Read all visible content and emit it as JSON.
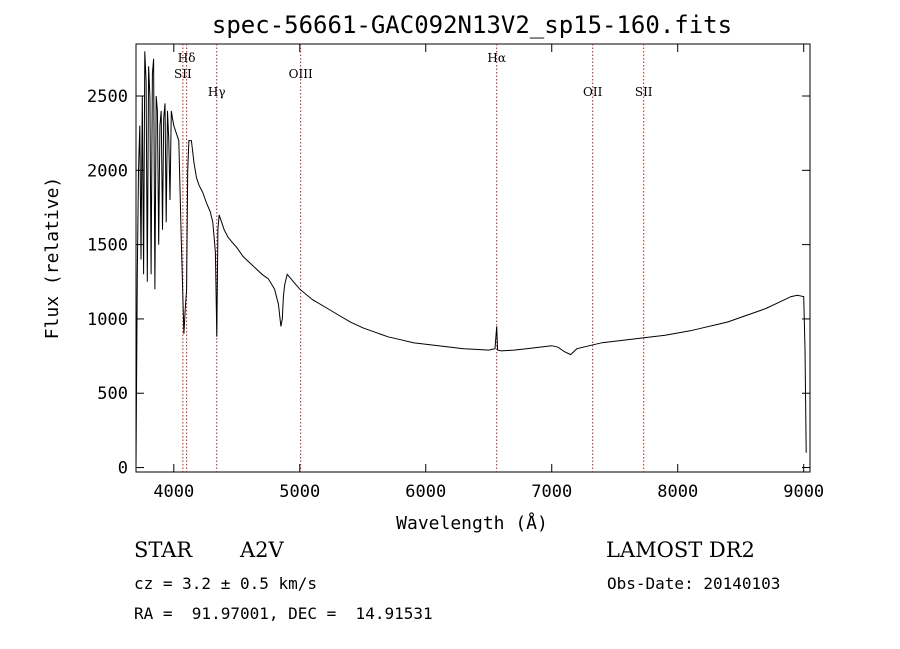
{
  "chart_data": {
    "type": "line",
    "title": "spec-56661-GAC092N13V2_sp15-160.fits",
    "xlabel": "Wavelength (Å)",
    "ylabel": "Flux (relative)",
    "xlim": [
      3700,
      9050
    ],
    "ylim": [
      -30,
      2850
    ],
    "xticks": [
      4000,
      5000,
      6000,
      7000,
      8000,
      9000
    ],
    "yticks": [
      0,
      500,
      1000,
      1500,
      2000,
      2500
    ],
    "grid": false,
    "line_color": "#000000",
    "marker_color": "#b22222",
    "spectral_lines": [
      {
        "label": "Hδ",
        "x": 4102
      },
      {
        "label": "SII",
        "x": 4072
      },
      {
        "label": "Hγ",
        "x": 4341
      },
      {
        "label": "OIII",
        "x": 5007
      },
      {
        "label": "Hα",
        "x": 6563
      },
      {
        "label": "OII",
        "x": 7325
      },
      {
        "label": "SII",
        "x": 7730
      }
    ],
    "series": [
      {
        "x": [
          3700,
          3710,
          3720,
          3730,
          3740,
          3750,
          3760,
          3770,
          3780,
          3790,
          3800,
          3810,
          3820,
          3830,
          3840,
          3850,
          3860,
          3870,
          3880,
          3890,
          3900,
          3910,
          3920,
          3930,
          3940,
          3950,
          3960,
          3970,
          3980,
          3990,
          4000,
          4020,
          4040,
          4060,
          4080,
          4090,
          4102,
          4110,
          4120,
          4140,
          4160,
          4180,
          4200,
          4230,
          4260,
          4290,
          4310,
          4330,
          4341,
          4350,
          4360,
          4380,
          4400,
          4430,
          4460,
          4500,
          4550,
          4600,
          4650,
          4700,
          4750,
          4800,
          4830,
          4850,
          4861,
          4870,
          4880,
          4900,
          4950,
          5000,
          5100,
          5200,
          5300,
          5400,
          5500,
          5600,
          5700,
          5800,
          5900,
          6000,
          6100,
          6200,
          6300,
          6400,
          6500,
          6550,
          6563,
          6570,
          6600,
          6700,
          6800,
          6900,
          7000,
          7050,
          7100,
          7150,
          7200,
          7300,
          7400,
          7500,
          7600,
          7700,
          7800,
          7900,
          8000,
          8100,
          8200,
          8300,
          8400,
          8500,
          8600,
          8700,
          8800,
          8850,
          8900,
          8950,
          9000,
          9010,
          9020
        ],
        "y": [
          0,
          1300,
          2000,
          2300,
          1400,
          2500,
          1300,
          2800,
          2600,
          1250,
          2700,
          2500,
          1300,
          2650,
          2750,
          1200,
          2500,
          2400,
          1500,
          2300,
          2400,
          1600,
          2350,
          2450,
          1650,
          2400,
          2200,
          1800,
          2400,
          2350,
          2300,
          2250,
          2200,
          1500,
          900,
          1050,
          1200,
          2000,
          2200,
          2200,
          2050,
          1950,
          1900,
          1850,
          1780,
          1720,
          1650,
          1450,
          880,
          1600,
          1700,
          1650,
          1600,
          1550,
          1520,
          1480,
          1420,
          1380,
          1340,
          1300,
          1270,
          1200,
          1100,
          950,
          1000,
          1150,
          1230,
          1300,
          1250,
          1200,
          1130,
          1080,
          1030,
          980,
          940,
          910,
          880,
          860,
          840,
          830,
          820,
          810,
          800,
          795,
          790,
          800,
          950,
          790,
          785,
          790,
          800,
          810,
          820,
          810,
          780,
          760,
          800,
          820,
          840,
          850,
          860,
          870,
          880,
          890,
          905,
          920,
          940,
          960,
          980,
          1010,
          1040,
          1070,
          1110,
          1130,
          1150,
          1160,
          1150,
          800,
          100
        ]
      }
    ]
  },
  "info": {
    "class": "STAR",
    "subclass": "A2V",
    "survey": "LAMOST DR2",
    "cz": "cz = 3.2 ± 0.5 km/s",
    "obs_date": "Obs-Date: 20140103",
    "coords": "RA =  91.97001, DEC =  14.91531"
  }
}
